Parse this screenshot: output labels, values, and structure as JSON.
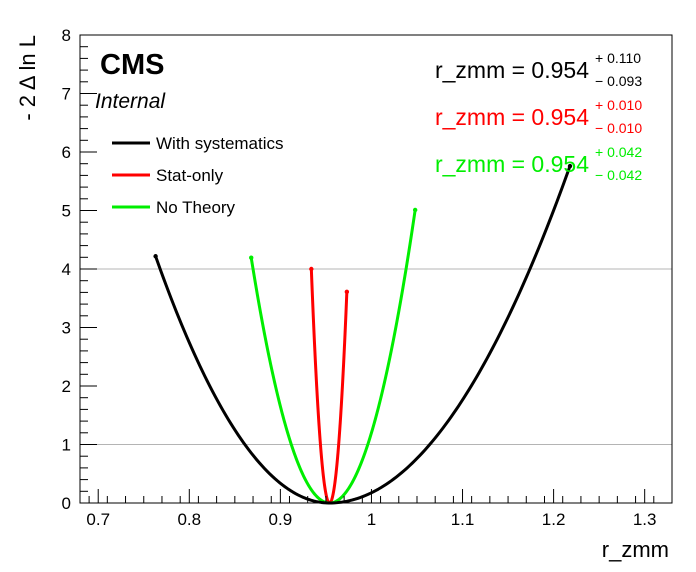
{
  "chart_data": {
    "type": "line",
    "xlabel": "r_zmm",
    "ylabel": "- 2 Δ ln L",
    "xlim": [
      0.68,
      1.33
    ],
    "ylim": [
      0,
      8
    ],
    "x_ticks": [
      "0.7",
      "0.8",
      "0.9",
      "1",
      "1.1",
      "1.2",
      "1.3"
    ],
    "y_ticks": [
      "0",
      "1",
      "2",
      "3",
      "4",
      "5",
      "6",
      "7",
      "8"
    ],
    "reference_lines": [
      1,
      4
    ],
    "labels": {
      "experiment": "CMS",
      "status": "Internal"
    },
    "legend_position": "top-left",
    "series": [
      {
        "name": "With systematics",
        "color": "#000000",
        "best_fit": 0.954,
        "err_up": 0.11,
        "err_down": 0.093,
        "x_range": [
          0.763,
          1.218
        ]
      },
      {
        "name": "Stat-only",
        "color": "#ff0000",
        "best_fit": 0.954,
        "err_up": 0.01,
        "err_down": 0.01,
        "x_range": [
          0.934,
          0.973
        ]
      },
      {
        "name": "No Theory",
        "color": "#00ee00",
        "best_fit": 0.954,
        "err_up": 0.042,
        "err_down": 0.042,
        "x_range": [
          0.868,
          1.048
        ]
      }
    ],
    "results": [
      {
        "text": "r_zmm = 0.954",
        "up": "+ 0.110",
        "down": "− 0.093",
        "color": "#000000"
      },
      {
        "text": "r_zmm = 0.954",
        "up": "+ 0.010",
        "down": "− 0.010",
        "color": "#ff0000"
      },
      {
        "text": "r_zmm = 0.954",
        "up": "+ 0.042",
        "down": "− 0.042",
        "color": "#00ee00"
      }
    ]
  }
}
